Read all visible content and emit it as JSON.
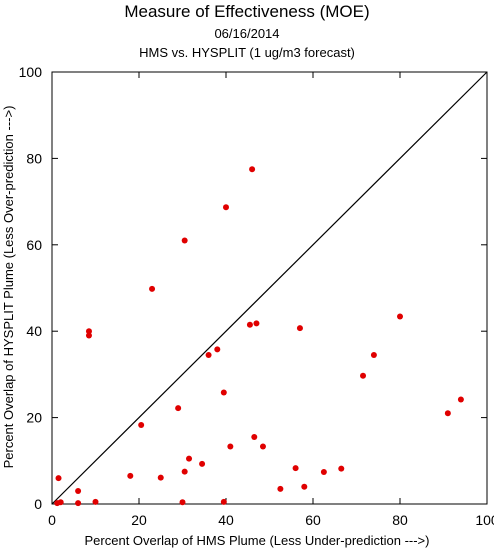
{
  "chart_data": {
    "type": "scatter",
    "title": "Measure of Effectiveness (MOE)",
    "subtitle_date": "06/16/2014",
    "subtitle_desc": "HMS vs. HYSPLIT  (1 ug/m3 forecast)",
    "xlabel": "Percent Overlap of HMS Plume (Less Under-prediction --->)",
    "ylabel": "Percent Overlap of HYSPLIT Plume (Less Over-prediction --->)",
    "xlim": [
      0,
      100
    ],
    "ylim": [
      0,
      100
    ],
    "xticks": [
      0,
      20,
      40,
      60,
      80,
      100
    ],
    "yticks": [
      0,
      20,
      40,
      60,
      80,
      100
    ],
    "grid": false,
    "reference_line": "y = x",
    "point_color": "#e00000",
    "points": [
      [
        1.5,
        6
      ],
      [
        1.2,
        0.2
      ],
      [
        2,
        0.4
      ],
      [
        6,
        3
      ],
      [
        6,
        0.2
      ],
      [
        8.5,
        40
      ],
      [
        8.5,
        39
      ],
      [
        10,
        0.5
      ],
      [
        18,
        6.5
      ],
      [
        20.5,
        18.3
      ],
      [
        23,
        49.8
      ],
      [
        25,
        6.1
      ],
      [
        29,
        22.2
      ],
      [
        30,
        0.4
      ],
      [
        30.5,
        7.5
      ],
      [
        30.5,
        61
      ],
      [
        31.5,
        10.5
      ],
      [
        34.5,
        9.3
      ],
      [
        36,
        34.5
      ],
      [
        38,
        35.8
      ],
      [
        39.5,
        0.5
      ],
      [
        39.5,
        25.8
      ],
      [
        40,
        68.7
      ],
      [
        41,
        13.3
      ],
      [
        45.5,
        41.5
      ],
      [
        46,
        77.5
      ],
      [
        46.5,
        15.5
      ],
      [
        47,
        41.8
      ],
      [
        48.5,
        13.3
      ],
      [
        52.5,
        3.5
      ],
      [
        56,
        8.3
      ],
      [
        57,
        40.7
      ],
      [
        58,
        4
      ],
      [
        62.5,
        7.4
      ],
      [
        66.5,
        8.2
      ],
      [
        71.5,
        29.7
      ],
      [
        74,
        34.5
      ],
      [
        80,
        43.4
      ],
      [
        91,
        21
      ],
      [
        94,
        24.2
      ]
    ]
  }
}
